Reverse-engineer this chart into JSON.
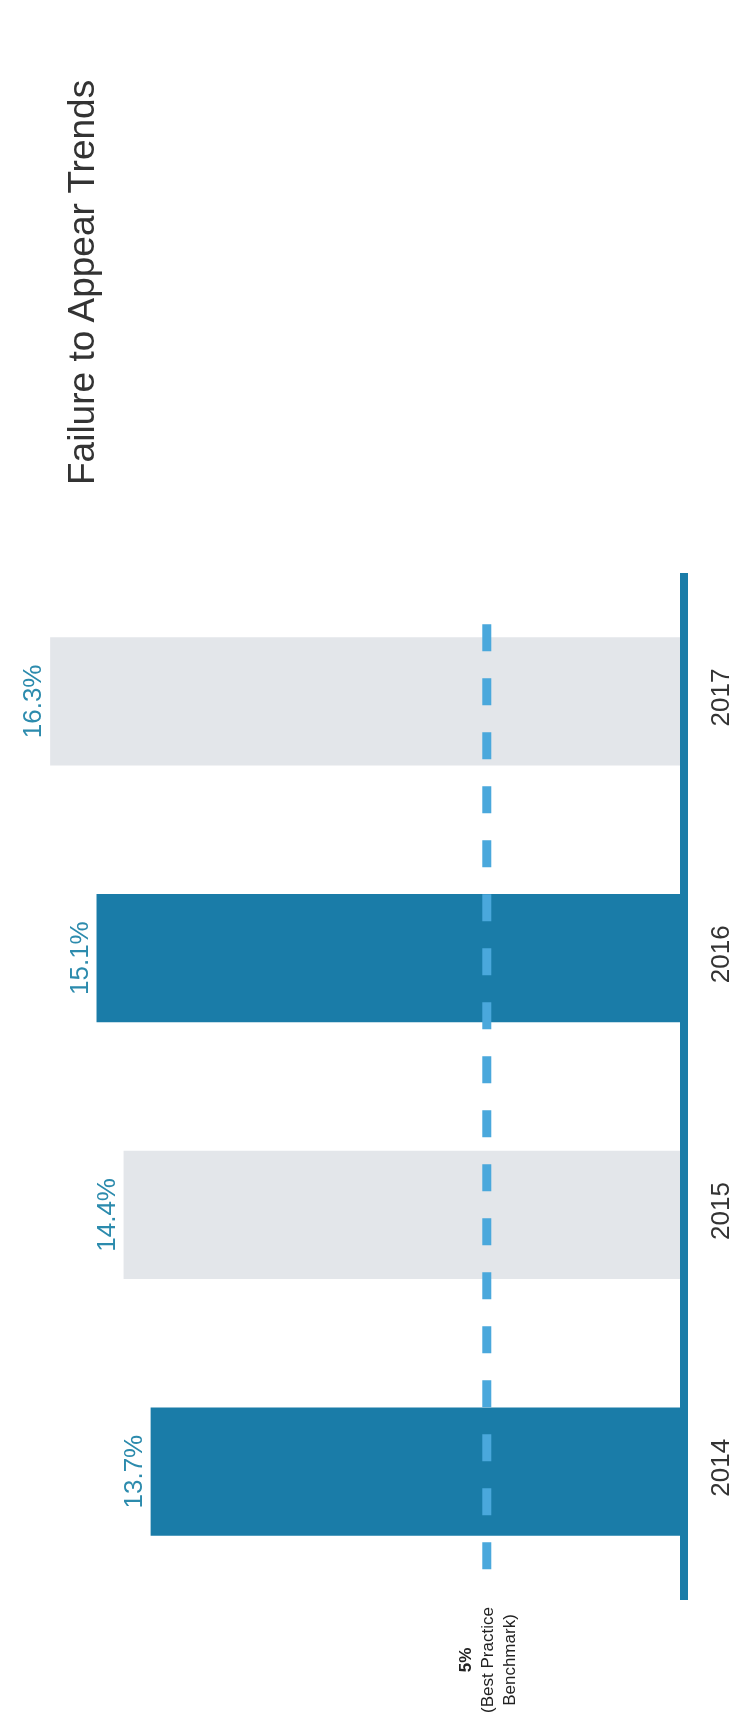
{
  "chart_data": {
    "type": "bar",
    "orientation": "horizontal",
    "title": "Failure to Appear Trends",
    "categories": [
      "2017",
      "2016",
      "2015",
      "2014"
    ],
    "values": [
      16.3,
      15.1,
      14.4,
      13.7
    ],
    "colors": [
      "#e3e6ea",
      "#1a7ca8",
      "#e3e6ea",
      "#1a7ca8"
    ],
    "value_labels": [
      "16.3%",
      "15.1%",
      "14.4%",
      "13.7%"
    ],
    "tick_labels": "y",
    "ref_lines": [
      {
        "axis": "x",
        "value": 5,
        "label": "5%\n(Best Practice\nBenchmark)",
        "color": "#4aa8dc",
        "line_style": "dashed"
      }
    ]
  }
}
